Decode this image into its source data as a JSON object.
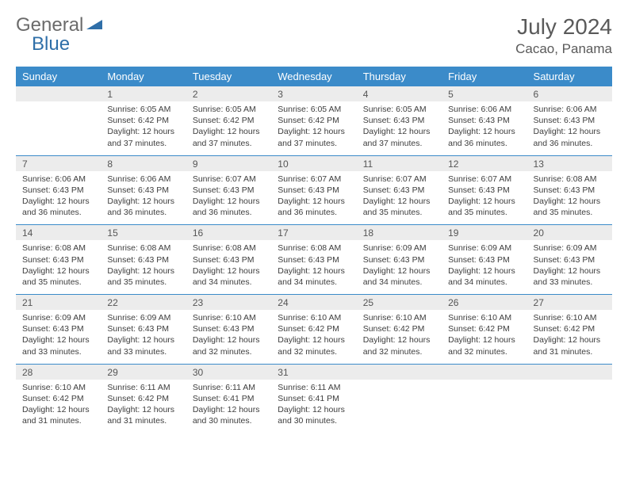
{
  "brand": {
    "word1": "General",
    "word2": "Blue"
  },
  "title": "July 2024",
  "location": "Cacao, Panama",
  "colors": {
    "header_bg": "#3b8bc9",
    "header_text": "#ffffff",
    "daynum_bg": "#ececec",
    "row_divider": "#3b8bc9",
    "body_text": "#3d3d3d",
    "title_text": "#5a5a5a",
    "logo_gray": "#6b6b6b",
    "logo_blue": "#2f6fa8"
  },
  "typography": {
    "title_fontsize": 28,
    "location_fontsize": 17,
    "dow_fontsize": 13,
    "daynum_fontsize": 12,
    "cell_fontsize": 10.5
  },
  "days_of_week": [
    "Sunday",
    "Monday",
    "Tuesday",
    "Wednesday",
    "Thursday",
    "Friday",
    "Saturday"
  ],
  "weeks": [
    [
      null,
      {
        "n": "1",
        "sr": "Sunrise: 6:05 AM",
        "ss": "Sunset: 6:42 PM",
        "d1": "Daylight: 12 hours",
        "d2": "and 37 minutes."
      },
      {
        "n": "2",
        "sr": "Sunrise: 6:05 AM",
        "ss": "Sunset: 6:42 PM",
        "d1": "Daylight: 12 hours",
        "d2": "and 37 minutes."
      },
      {
        "n": "3",
        "sr": "Sunrise: 6:05 AM",
        "ss": "Sunset: 6:42 PM",
        "d1": "Daylight: 12 hours",
        "d2": "and 37 minutes."
      },
      {
        "n": "4",
        "sr": "Sunrise: 6:05 AM",
        "ss": "Sunset: 6:43 PM",
        "d1": "Daylight: 12 hours",
        "d2": "and 37 minutes."
      },
      {
        "n": "5",
        "sr": "Sunrise: 6:06 AM",
        "ss": "Sunset: 6:43 PM",
        "d1": "Daylight: 12 hours",
        "d2": "and 36 minutes."
      },
      {
        "n": "6",
        "sr": "Sunrise: 6:06 AM",
        "ss": "Sunset: 6:43 PM",
        "d1": "Daylight: 12 hours",
        "d2": "and 36 minutes."
      }
    ],
    [
      {
        "n": "7",
        "sr": "Sunrise: 6:06 AM",
        "ss": "Sunset: 6:43 PM",
        "d1": "Daylight: 12 hours",
        "d2": "and 36 minutes."
      },
      {
        "n": "8",
        "sr": "Sunrise: 6:06 AM",
        "ss": "Sunset: 6:43 PM",
        "d1": "Daylight: 12 hours",
        "d2": "and 36 minutes."
      },
      {
        "n": "9",
        "sr": "Sunrise: 6:07 AM",
        "ss": "Sunset: 6:43 PM",
        "d1": "Daylight: 12 hours",
        "d2": "and 36 minutes."
      },
      {
        "n": "10",
        "sr": "Sunrise: 6:07 AM",
        "ss": "Sunset: 6:43 PM",
        "d1": "Daylight: 12 hours",
        "d2": "and 36 minutes."
      },
      {
        "n": "11",
        "sr": "Sunrise: 6:07 AM",
        "ss": "Sunset: 6:43 PM",
        "d1": "Daylight: 12 hours",
        "d2": "and 35 minutes."
      },
      {
        "n": "12",
        "sr": "Sunrise: 6:07 AM",
        "ss": "Sunset: 6:43 PM",
        "d1": "Daylight: 12 hours",
        "d2": "and 35 minutes."
      },
      {
        "n": "13",
        "sr": "Sunrise: 6:08 AM",
        "ss": "Sunset: 6:43 PM",
        "d1": "Daylight: 12 hours",
        "d2": "and 35 minutes."
      }
    ],
    [
      {
        "n": "14",
        "sr": "Sunrise: 6:08 AM",
        "ss": "Sunset: 6:43 PM",
        "d1": "Daylight: 12 hours",
        "d2": "and 35 minutes."
      },
      {
        "n": "15",
        "sr": "Sunrise: 6:08 AM",
        "ss": "Sunset: 6:43 PM",
        "d1": "Daylight: 12 hours",
        "d2": "and 35 minutes."
      },
      {
        "n": "16",
        "sr": "Sunrise: 6:08 AM",
        "ss": "Sunset: 6:43 PM",
        "d1": "Daylight: 12 hours",
        "d2": "and 34 minutes."
      },
      {
        "n": "17",
        "sr": "Sunrise: 6:08 AM",
        "ss": "Sunset: 6:43 PM",
        "d1": "Daylight: 12 hours",
        "d2": "and 34 minutes."
      },
      {
        "n": "18",
        "sr": "Sunrise: 6:09 AM",
        "ss": "Sunset: 6:43 PM",
        "d1": "Daylight: 12 hours",
        "d2": "and 34 minutes."
      },
      {
        "n": "19",
        "sr": "Sunrise: 6:09 AM",
        "ss": "Sunset: 6:43 PM",
        "d1": "Daylight: 12 hours",
        "d2": "and 34 minutes."
      },
      {
        "n": "20",
        "sr": "Sunrise: 6:09 AM",
        "ss": "Sunset: 6:43 PM",
        "d1": "Daylight: 12 hours",
        "d2": "and 33 minutes."
      }
    ],
    [
      {
        "n": "21",
        "sr": "Sunrise: 6:09 AM",
        "ss": "Sunset: 6:43 PM",
        "d1": "Daylight: 12 hours",
        "d2": "and 33 minutes."
      },
      {
        "n": "22",
        "sr": "Sunrise: 6:09 AM",
        "ss": "Sunset: 6:43 PM",
        "d1": "Daylight: 12 hours",
        "d2": "and 33 minutes."
      },
      {
        "n": "23",
        "sr": "Sunrise: 6:10 AM",
        "ss": "Sunset: 6:43 PM",
        "d1": "Daylight: 12 hours",
        "d2": "and 32 minutes."
      },
      {
        "n": "24",
        "sr": "Sunrise: 6:10 AM",
        "ss": "Sunset: 6:42 PM",
        "d1": "Daylight: 12 hours",
        "d2": "and 32 minutes."
      },
      {
        "n": "25",
        "sr": "Sunrise: 6:10 AM",
        "ss": "Sunset: 6:42 PM",
        "d1": "Daylight: 12 hours",
        "d2": "and 32 minutes."
      },
      {
        "n": "26",
        "sr": "Sunrise: 6:10 AM",
        "ss": "Sunset: 6:42 PM",
        "d1": "Daylight: 12 hours",
        "d2": "and 32 minutes."
      },
      {
        "n": "27",
        "sr": "Sunrise: 6:10 AM",
        "ss": "Sunset: 6:42 PM",
        "d1": "Daylight: 12 hours",
        "d2": "and 31 minutes."
      }
    ],
    [
      {
        "n": "28",
        "sr": "Sunrise: 6:10 AM",
        "ss": "Sunset: 6:42 PM",
        "d1": "Daylight: 12 hours",
        "d2": "and 31 minutes."
      },
      {
        "n": "29",
        "sr": "Sunrise: 6:11 AM",
        "ss": "Sunset: 6:42 PM",
        "d1": "Daylight: 12 hours",
        "d2": "and 31 minutes."
      },
      {
        "n": "30",
        "sr": "Sunrise: 6:11 AM",
        "ss": "Sunset: 6:41 PM",
        "d1": "Daylight: 12 hours",
        "d2": "and 30 minutes."
      },
      {
        "n": "31",
        "sr": "Sunrise: 6:11 AM",
        "ss": "Sunset: 6:41 PM",
        "d1": "Daylight: 12 hours",
        "d2": "and 30 minutes."
      },
      null,
      null,
      null
    ]
  ]
}
